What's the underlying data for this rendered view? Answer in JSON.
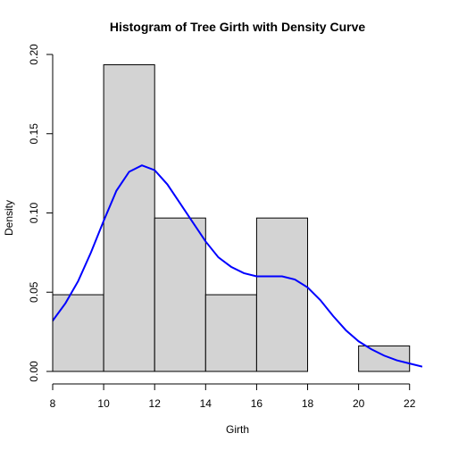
{
  "chart_data": {
    "type": "histogram",
    "title": "Histogram of Tree Girth with Density Curve",
    "xlabel": "Girth",
    "ylabel": "Density",
    "xlim": [
      8,
      22.5
    ],
    "ylim": [
      0,
      0.2
    ],
    "x_ticks": [
      8,
      10,
      12,
      14,
      16,
      18,
      20,
      22
    ],
    "x_tick_labels": [
      "8",
      "10",
      "12",
      "14",
      "16",
      "18",
      "20",
      "22"
    ],
    "y_ticks": [
      0.0,
      0.05,
      0.1,
      0.15,
      0.2
    ],
    "y_tick_labels": [
      "0.00",
      "0.05",
      "0.10",
      "0.15",
      "0.20"
    ],
    "bins": [
      {
        "start": 8,
        "end": 10,
        "density": 0.0484
      },
      {
        "start": 10,
        "end": 12,
        "density": 0.1935
      },
      {
        "start": 12,
        "end": 14,
        "density": 0.0968
      },
      {
        "start": 14,
        "end": 16,
        "density": 0.0484
      },
      {
        "start": 16,
        "end": 18,
        "density": 0.0968
      },
      {
        "start": 18,
        "end": 20,
        "density": 0.0
      },
      {
        "start": 20,
        "end": 22,
        "density": 0.0161
      }
    ],
    "density_curve": {
      "name": "Density Curve",
      "x": [
        7.5,
        8.0,
        8.5,
        9.0,
        9.5,
        10.0,
        10.5,
        11.0,
        11.5,
        12.0,
        12.5,
        13.0,
        13.5,
        14.0,
        14.5,
        15.0,
        15.5,
        16.0,
        16.5,
        17.0,
        17.5,
        18.0,
        18.5,
        19.0,
        19.5,
        20.0,
        20.5,
        21.0,
        21.5,
        22.0,
        22.5
      ],
      "y": [
        0.023,
        0.032,
        0.043,
        0.057,
        0.075,
        0.095,
        0.114,
        0.126,
        0.13,
        0.127,
        0.118,
        0.106,
        0.094,
        0.082,
        0.072,
        0.066,
        0.062,
        0.06,
        0.06,
        0.06,
        0.058,
        0.053,
        0.045,
        0.035,
        0.026,
        0.019,
        0.014,
        0.01,
        0.007,
        0.005,
        0.003
      ]
    },
    "bar_color": "#d3d3d3",
    "curve_color": "#0000ff"
  }
}
